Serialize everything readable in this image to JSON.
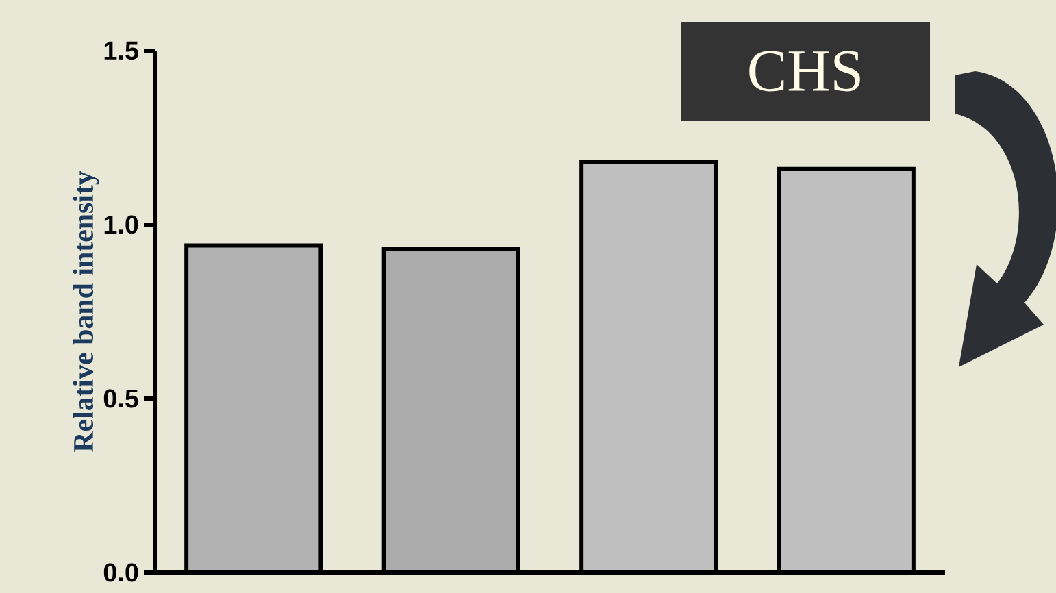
{
  "chart_data": {
    "type": "bar",
    "title": "CHS",
    "ylabel": "Relative band intensity",
    "categories": [
      null,
      null,
      null,
      null
    ],
    "values": [
      0.94,
      0.93,
      1.18,
      1.16
    ],
    "color": "#000000",
    "ylim": [
      0,
      1.5
    ],
    "yticks": [
      {
        "value": 0,
        "label": "0.0"
      },
      {
        "value": 0.5,
        "label": "0.5"
      },
      {
        "value": 1,
        "label": "1.0"
      },
      {
        "value": 1.5,
        "label": "1.5"
      }
    ]
  }
}
